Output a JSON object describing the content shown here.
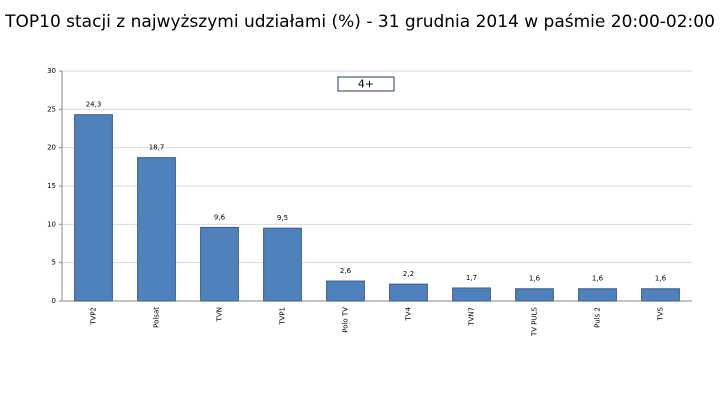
{
  "chart_data": {
    "type": "bar",
    "title": "TOP10 stacji z najwyższymi udziałami (%) - 31 grudnia 2014 w paśmie 20:00-02:00",
    "annotation": "4+",
    "categories": [
      "TVP2",
      "Polsat",
      "TVN",
      "TVP1",
      "Polo TV",
      "TV4",
      "TVN7",
      "TV PULS",
      "Puls 2",
      "TVS"
    ],
    "values": [
      24.3,
      18.7,
      9.6,
      9.5,
      2.6,
      2.2,
      1.7,
      1.6,
      1.6,
      1.6
    ],
    "value_labels": [
      "24,3",
      "18,7",
      "9,6",
      "9,5",
      "2,6",
      "2,2",
      "1,7",
      "1,6",
      "1,6",
      "1,6"
    ],
    "color": "#4f81bd",
    "ylim": [
      0,
      30
    ],
    "yticks": [
      0,
      5,
      10,
      15,
      20,
      25,
      30
    ],
    "grid": true
  }
}
